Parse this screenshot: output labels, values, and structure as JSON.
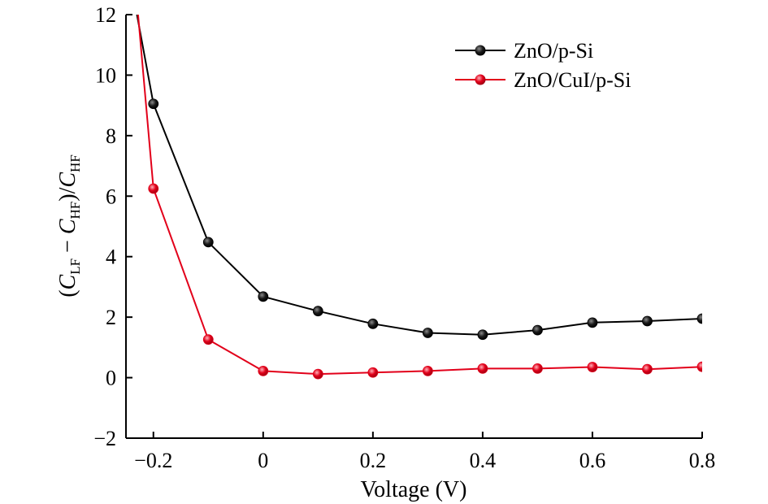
{
  "chart_data": {
    "type": "line",
    "xlabel": "Voltage (V)",
    "ylabel": {
      "open": "(",
      "c1": "C",
      "sub1": "LF",
      "minus": " − ",
      "c2": "C",
      "sub2": "HF",
      "close": ")/",
      "c3": "C",
      "sub3": "HF"
    },
    "xlim": [
      -0.25,
      0.8
    ],
    "ylim": [
      -2,
      12
    ],
    "xticks": [
      -0.2,
      0,
      0.2,
      0.4,
      0.6,
      0.8
    ],
    "xtick_labels": [
      "−0.2",
      "0",
      "0.2",
      "0.4",
      "0.6",
      "0.8"
    ],
    "yticks": [
      -2,
      0,
      2,
      4,
      6,
      8,
      10,
      12
    ],
    "ytick_labels": [
      "−2",
      "0",
      "2",
      "4",
      "6",
      "8",
      "10",
      "12"
    ],
    "grid": false,
    "legend_position": "top-right",
    "series": [
      {
        "name": "ZnO/p-Si",
        "color": "#000000",
        "marker_color": "#1a1a1a",
        "x": [
          -0.2,
          -0.1,
          0,
          0.1,
          0.2,
          0.3,
          0.4,
          0.5,
          0.6,
          0.7,
          0.8
        ],
        "y": [
          9.05,
          4.48,
          2.68,
          2.2,
          1.78,
          1.48,
          1.42,
          1.57,
          1.82,
          1.87,
          1.95
        ],
        "line_start": [
          -0.23,
          12
        ]
      },
      {
        "name": "ZnO/CuI/p-Si",
        "color": "#e2001a",
        "marker_color": "#e2001a",
        "x": [
          -0.2,
          -0.1,
          0,
          0.1,
          0.2,
          0.3,
          0.4,
          0.5,
          0.6,
          0.7,
          0.8
        ],
        "y": [
          6.25,
          1.26,
          0.22,
          0.12,
          0.17,
          0.22,
          0.3,
          0.3,
          0.35,
          0.28,
          0.36
        ],
        "line_start": [
          -0.228,
          12
        ]
      }
    ]
  }
}
